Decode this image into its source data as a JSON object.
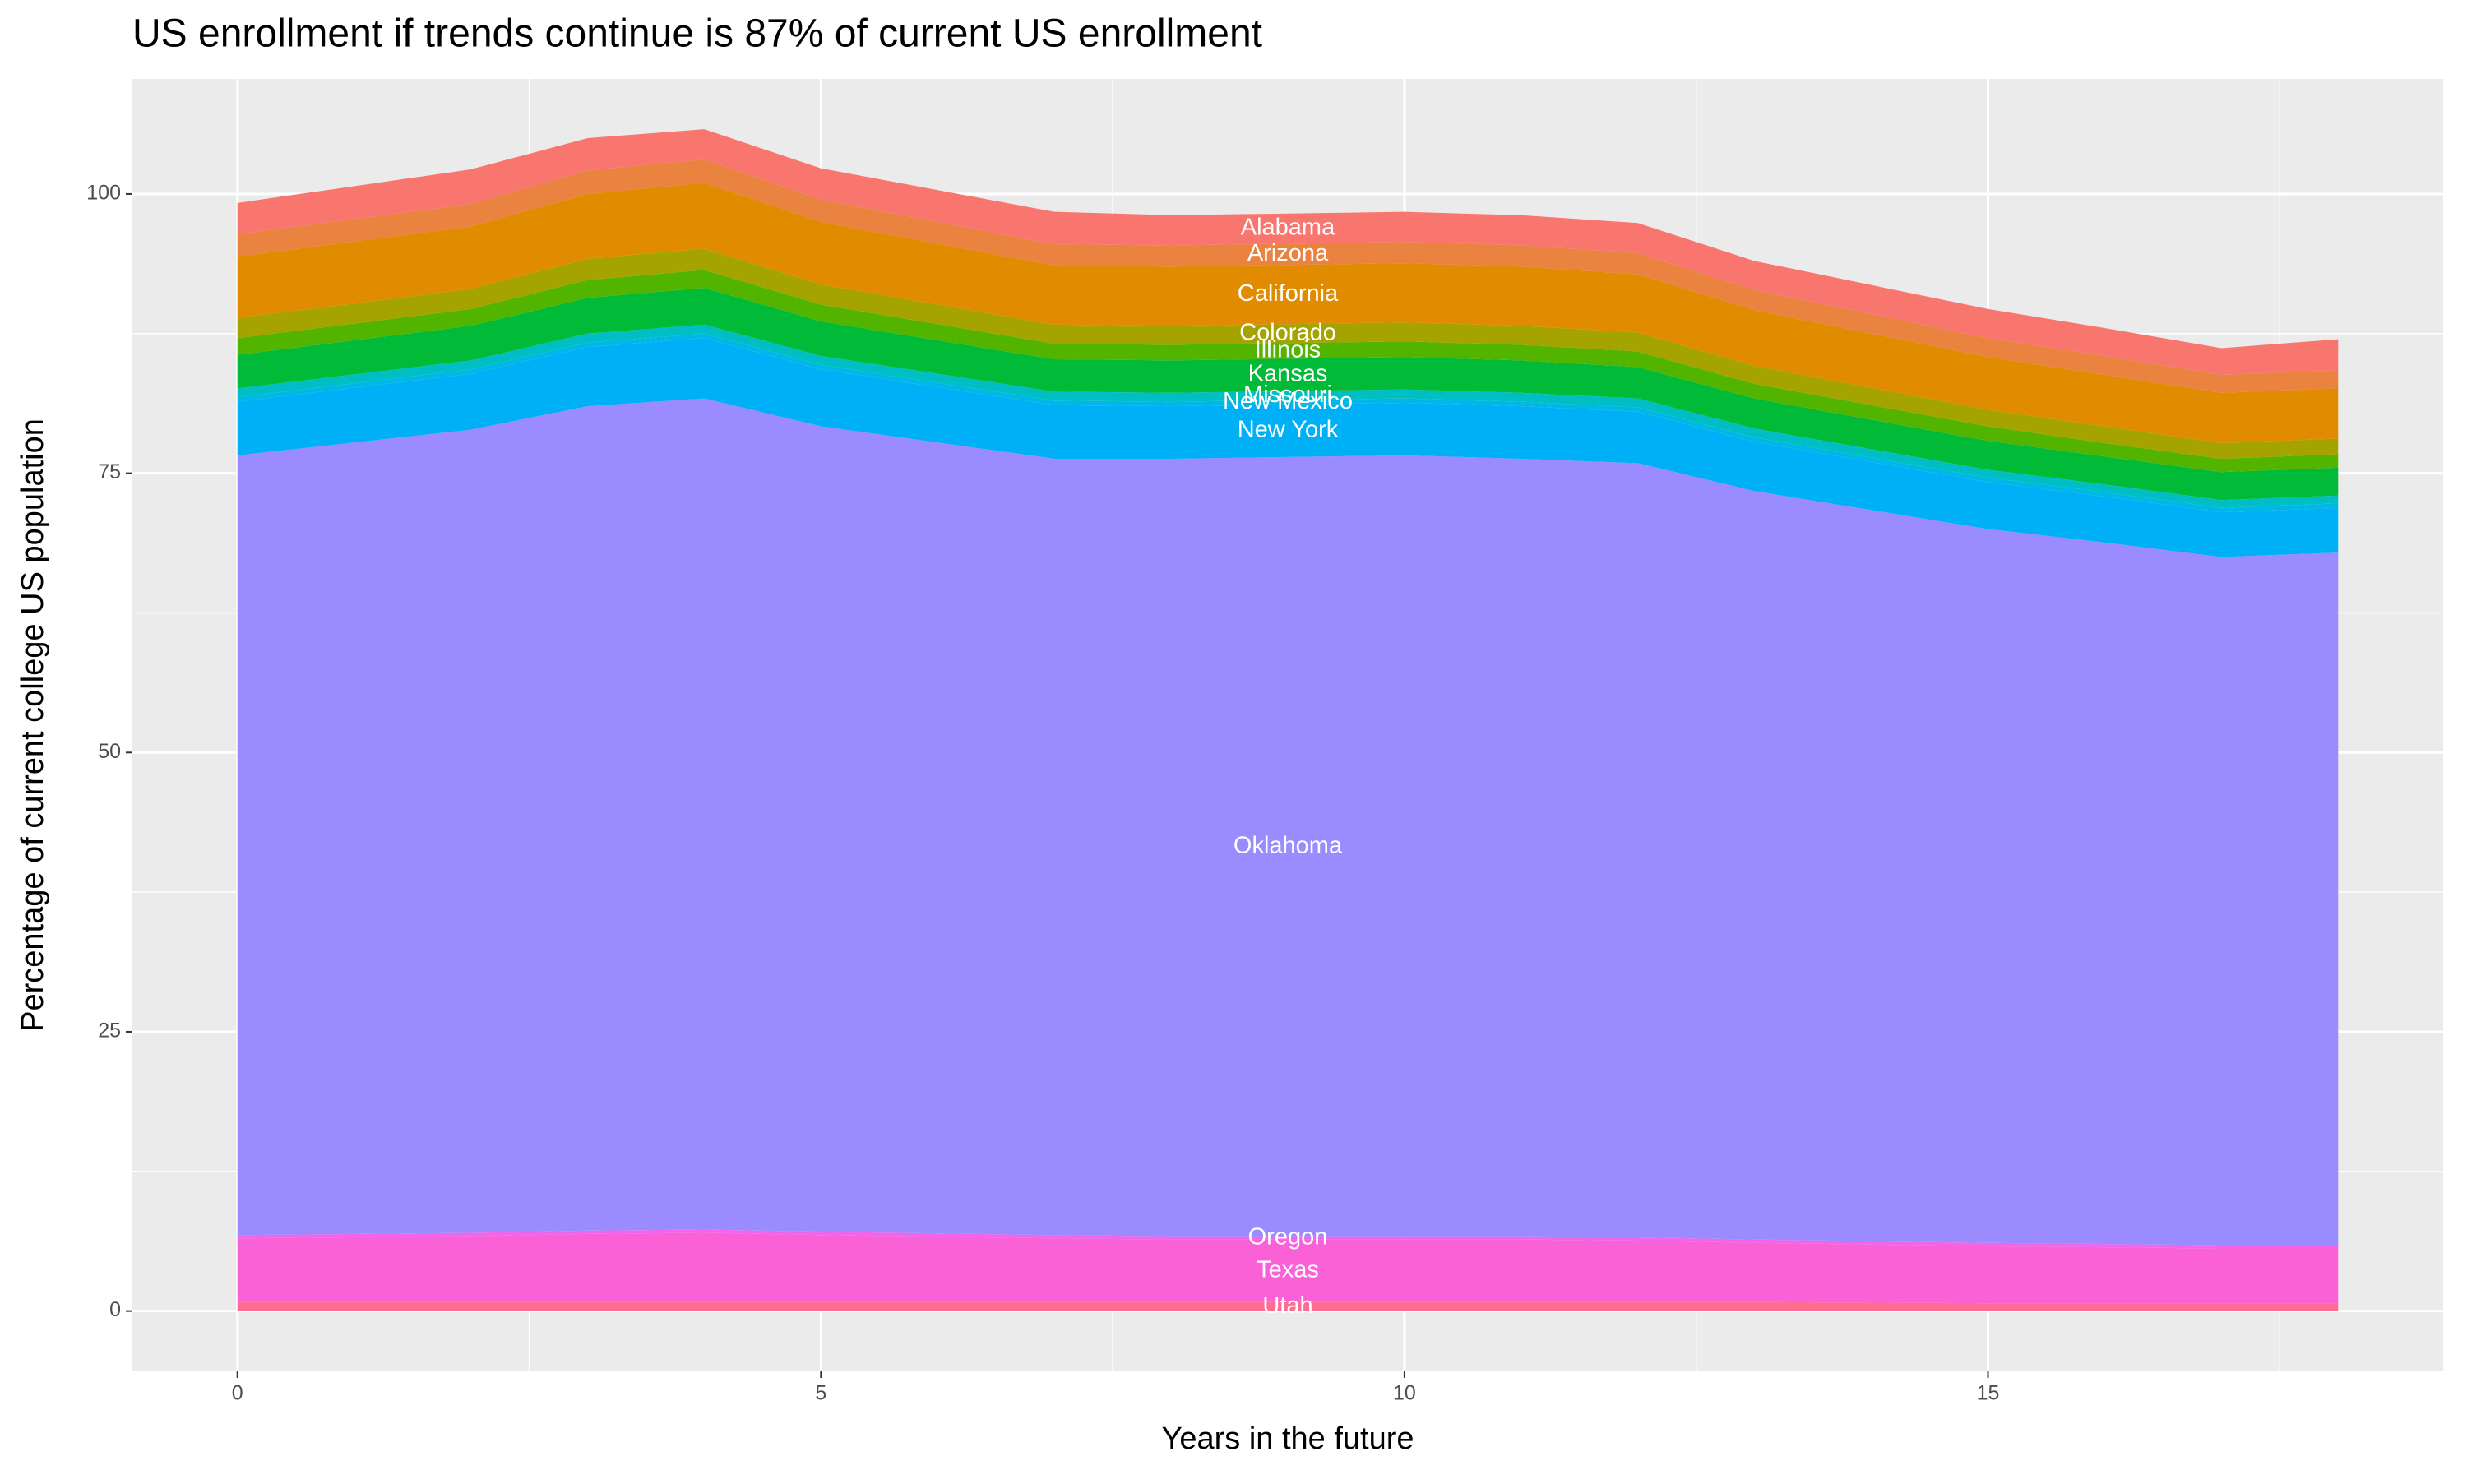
{
  "chart_data": {
    "type": "stacked_area",
    "title": "US enrollment if trends continue is 87% of current US enrollment",
    "x_label": "Years in the future",
    "y_label": "Percentage of current college US population",
    "x": [
      0,
      2,
      3,
      4,
      5,
      7,
      8,
      10,
      11,
      12,
      13,
      15,
      16,
      17,
      18
    ],
    "xlim": [
      -0.9,
      18.9
    ],
    "xticks": [
      0,
      5,
      10,
      15
    ],
    "ylim": [
      -5.4,
      110.3
    ],
    "yticks": [
      0,
      25,
      50,
      75,
      100
    ],
    "grid": true,
    "label_x": 9,
    "series": [
      {
        "name": "Utah",
        "color": "#FF6C91",
        "values": [
          0.8,
          0.8,
          0.8,
          0.8,
          0.8,
          0.8,
          0.8,
          0.8,
          0.8,
          0.8,
          0.8,
          0.7,
          0.7,
          0.7,
          0.7
        ]
      },
      {
        "name": "Texas",
        "color": "#FB61D7",
        "values": [
          5.7,
          5.9,
          6.1,
          6.2,
          6.0,
          5.7,
          5.6,
          5.6,
          5.6,
          5.5,
          5.3,
          5.1,
          5.0,
          4.9,
          4.9
        ]
      },
      {
        "name": "Oregon",
        "color": "#F066EA",
        "values": [
          0.3,
          0.3,
          0.3,
          0.3,
          0.3,
          0.3,
          0.3,
          0.3,
          0.3,
          0.3,
          0.3,
          0.3,
          0.3,
          0.3,
          0.3
        ]
      },
      {
        "name": "Oklahoma",
        "color": "#9A8CFF",
        "values": [
          69.8,
          71.9,
          73.8,
          74.4,
          72.1,
          69.5,
          69.6,
          69.9,
          69.6,
          69.3,
          67.0,
          63.9,
          62.8,
          61.6,
          62.0
        ]
      },
      {
        "name": "New York",
        "color": "#00B0F6",
        "values": [
          4.8,
          5.0,
          5.3,
          5.4,
          5.1,
          4.8,
          4.7,
          4.7,
          4.7,
          4.6,
          4.4,
          4.2,
          4.1,
          4.0,
          4.0
        ]
      },
      {
        "name": "New Mexico",
        "color": "#00B8E7",
        "values": [
          0.4,
          0.4,
          0.4,
          0.4,
          0.4,
          0.4,
          0.4,
          0.4,
          0.4,
          0.4,
          0.4,
          0.4,
          0.4,
          0.4,
          0.4
        ]
      },
      {
        "name": "Missouri",
        "color": "#00BFC4",
        "values": [
          0.8,
          0.8,
          0.8,
          0.8,
          0.8,
          0.8,
          0.8,
          0.8,
          0.8,
          0.8,
          0.8,
          0.7,
          0.7,
          0.7,
          0.7
        ]
      },
      {
        "name": "Kansas",
        "color": "#00BA38",
        "values": [
          3.0,
          3.1,
          3.2,
          3.3,
          3.1,
          2.9,
          2.9,
          2.9,
          2.9,
          2.8,
          2.7,
          2.6,
          2.5,
          2.5,
          2.5
        ]
      },
      {
        "name": "Illinois",
        "color": "#53B400",
        "values": [
          1.5,
          1.5,
          1.6,
          1.6,
          1.5,
          1.4,
          1.4,
          1.4,
          1.4,
          1.4,
          1.3,
          1.3,
          1.2,
          1.2,
          1.2
        ]
      },
      {
        "name": "Colorado",
        "color": "#A5A300",
        "values": [
          1.8,
          1.8,
          1.9,
          1.9,
          1.8,
          1.7,
          1.7,
          1.7,
          1.7,
          1.7,
          1.6,
          1.5,
          1.5,
          1.4,
          1.4
        ]
      },
      {
        "name": "California",
        "color": "#E08B00",
        "values": [
          5.5,
          5.6,
          5.8,
          5.9,
          5.6,
          5.3,
          5.3,
          5.3,
          5.3,
          5.2,
          5.0,
          4.7,
          4.6,
          4.5,
          4.5
        ]
      },
      {
        "name": "Arizona",
        "color": "#EA8240",
        "values": [
          2.0,
          2.0,
          2.1,
          2.1,
          2.0,
          1.9,
          1.9,
          1.9,
          1.9,
          1.9,
          1.8,
          1.7,
          1.7,
          1.6,
          1.6
        ]
      },
      {
        "name": "Alabama",
        "color": "#F8766D",
        "values": [
          2.8,
          3.1,
          2.9,
          2.7,
          2.8,
          2.9,
          2.7,
          2.7,
          2.7,
          2.7,
          2.6,
          2.6,
          2.5,
          2.4,
          2.8
        ]
      }
    ]
  }
}
